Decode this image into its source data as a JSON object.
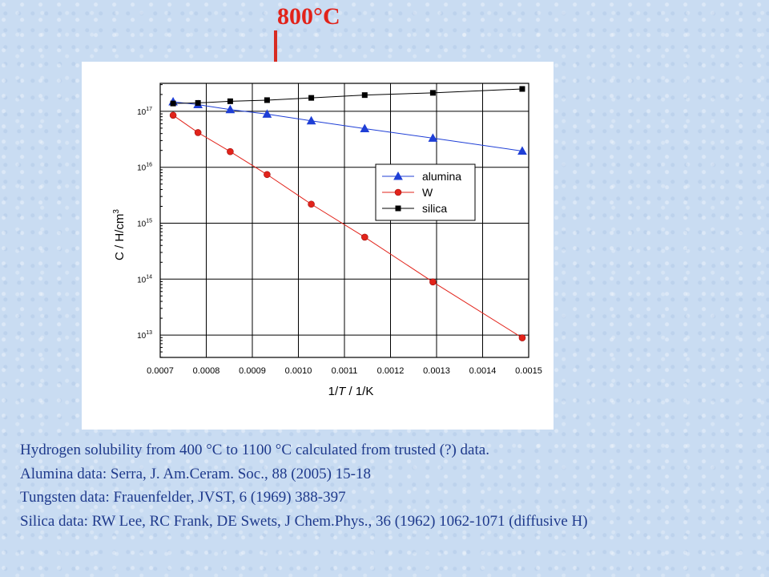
{
  "annotation": {
    "text": "800°C",
    "color": "#e2231a"
  },
  "chart_data": {
    "type": "scatter",
    "xlabel_parts": [
      "1/",
      "T",
      " / 1/K"
    ],
    "ylabel_parts": [
      "C / H/cm",
      "3"
    ],
    "xlim": [
      0.0007,
      0.0015
    ],
    "ylim_log10": [
      12.6,
      17.5
    ],
    "y_scale": "log",
    "grid": true,
    "legend_position": "right-middle",
    "x_ticks": [
      "0.0007",
      "0.0008",
      "0.0009",
      "0.0010",
      "0.0011",
      "0.0012",
      "0.0013",
      "0.0014",
      "0.0015"
    ],
    "y_ticks": [
      {
        "base": "10",
        "exp": "13",
        "value": 13
      },
      {
        "base": "10",
        "exp": "14",
        "value": 14
      },
      {
        "base": "10",
        "exp": "15",
        "value": 15
      },
      {
        "base": "10",
        "exp": "16",
        "value": 16
      },
      {
        "base": "10",
        "exp": "17",
        "value": 17
      }
    ],
    "x": [
      0.000728,
      0.000782,
      0.000852,
      0.000932,
      0.001028,
      0.001144,
      0.001292,
      0.001486
    ],
    "series": [
      {
        "name": "alumina",
        "marker": "triangle",
        "color": "#1f3fd6",
        "y_log10": [
          17.17,
          17.12,
          17.03,
          16.95,
          16.83,
          16.69,
          16.52,
          16.29
        ]
      },
      {
        "name": "W",
        "marker": "circle",
        "color": "#e2231a",
        "y_log10": [
          16.93,
          16.62,
          16.28,
          15.87,
          15.34,
          14.75,
          13.95,
          12.95
        ]
      },
      {
        "name": "silica",
        "marker": "square",
        "color": "#000000",
        "y_log10": [
          17.14,
          17.15,
          17.18,
          17.2,
          17.24,
          17.29,
          17.33,
          17.4
        ]
      }
    ]
  },
  "caption": {
    "lines": [
      "Hydrogen solubility from 400 °C to 1100 °C calculated from trusted (?) data.",
      "Alumina data:  Serra, J. Am.Ceram. Soc., 88 (2005) 15-18",
      "Tungsten data: Frauenfelder, JVST, 6 (1969) 388-397",
      "Silica data: RW Lee, RC Frank, DE Swets, J Chem.Phys., 36 (1962) 1062-1071 (diffusive H)"
    ],
    "color": "#1f3a8c"
  }
}
